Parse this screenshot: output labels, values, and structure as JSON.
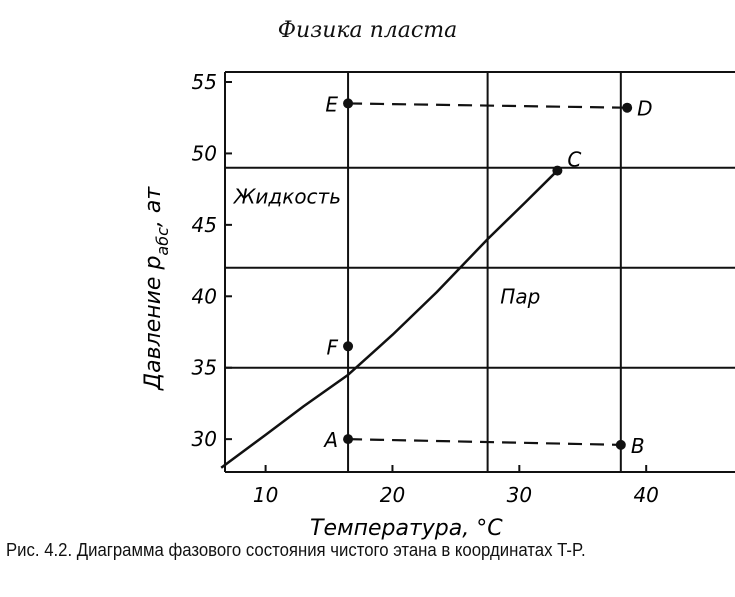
{
  "header": "Физика пласта",
  "caption": "Рис. 4.2. Диаграмма фазового состояния чистого этана в координатах T-P.",
  "chart_data": {
    "type": "line",
    "title": "",
    "xlabel": "Температура, °C",
    "ylabel": {
      "main": "Давление p",
      "subscript": "абс",
      "unit": ", ат"
    },
    "xlim": [
      6.8,
      47
    ],
    "ylim": [
      27.7,
      55.7
    ],
    "xticks": [
      10,
      20,
      30,
      40
    ],
    "yticks": [
      30,
      35,
      40,
      45,
      50,
      55
    ],
    "grid": {
      "x": [
        16.5,
        27.5,
        38
      ],
      "y": [
        35,
        42,
        49
      ]
    },
    "vapor_pressure_curve": {
      "x": [
        6.5,
        10,
        13,
        16.5,
        20,
        23.5,
        27.5,
        30.5,
        33
      ],
      "y": [
        28,
        30.3,
        32.3,
        34.5,
        37.3,
        40.3,
        44,
        46.6,
        48.8
      ]
    },
    "points": [
      {
        "label": "E",
        "x": 16.5,
        "y": 53.5
      },
      {
        "label": "D",
        "x": 38.5,
        "y": 53.2
      },
      {
        "label": "C",
        "x": 33,
        "y": 48.8
      },
      {
        "label": "F",
        "x": 16.5,
        "y": 36.5
      },
      {
        "label": "A",
        "x": 16.5,
        "y": 30
      },
      {
        "label": "B",
        "x": 38,
        "y": 29.6
      }
    ],
    "dashed_lines": [
      [
        "E",
        "D"
      ],
      [
        "A",
        "B"
      ]
    ],
    "region_labels": [
      {
        "text": "Жидкость",
        "x": 7.5,
        "y": 46.5
      },
      {
        "text": "Пар",
        "x": 28.5,
        "y": 39.5
      }
    ]
  }
}
